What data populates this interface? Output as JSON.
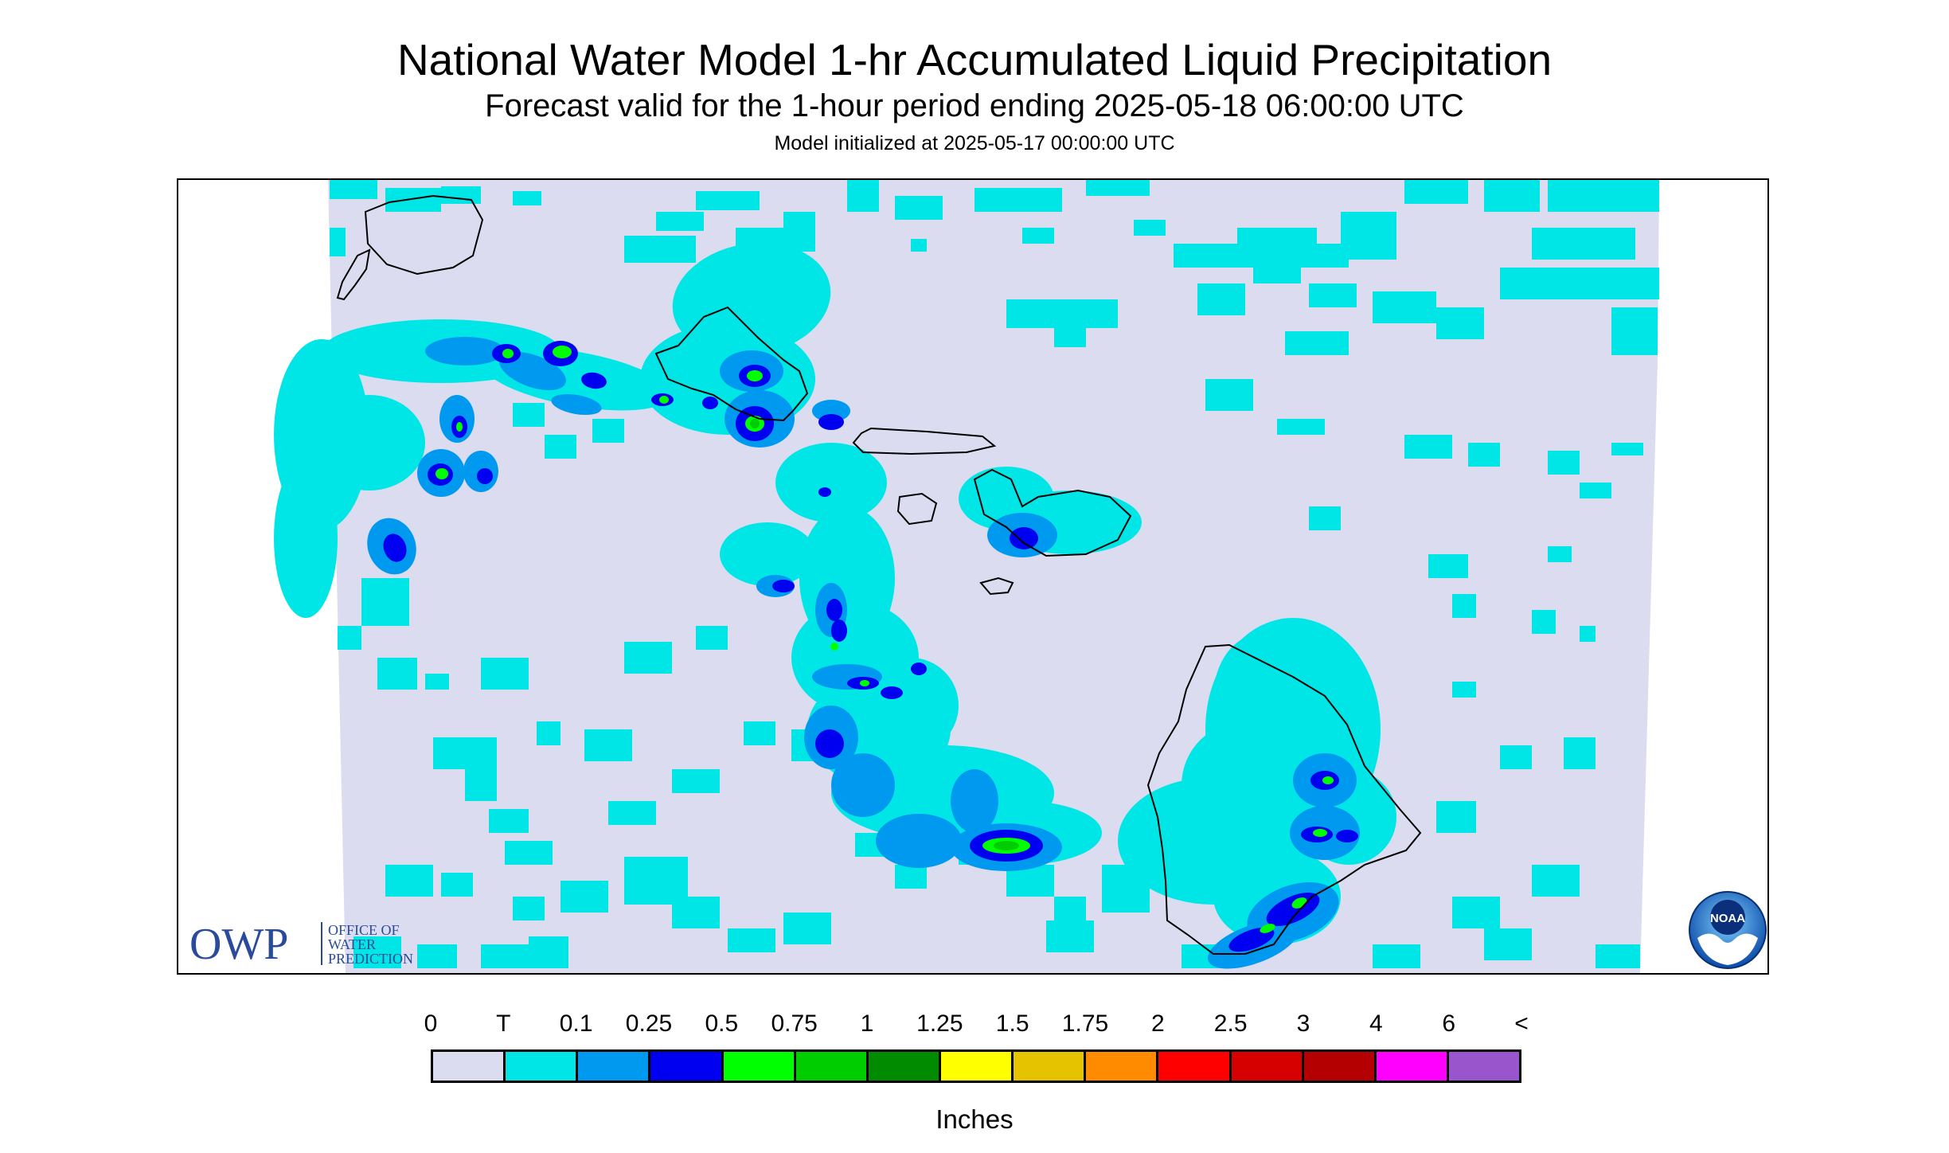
{
  "title": "National Water Model 1-hr Accumulated Liquid Precipitation",
  "subtitle": "Forecast valid for the 1-hour period ending 2025-05-18 06:00:00 UTC",
  "init_text": "Model initialized at 2025-05-17 00:00:00 UTC",
  "owp_logo": {
    "mark": "OWP",
    "line1": "OFFICE OF",
    "line2": "WATER",
    "line3": "PREDICTION"
  },
  "noaa_logo": {
    "mark": "NOAA",
    "icon": "noaa-seagull-globe-icon"
  },
  "legend": {
    "units_label": "Inches",
    "bins": [
      {
        "label": "0",
        "color": "#dcdcf0"
      },
      {
        "label": "T",
        "color": "#00e6e6"
      },
      {
        "label": "0.1",
        "color": "#0099f0"
      },
      {
        "label": "0.25",
        "color": "#0000f0"
      },
      {
        "label": "0.5",
        "color": "#00ff00"
      },
      {
        "label": "0.75",
        "color": "#00cd00"
      },
      {
        "label": "1",
        "color": "#008b00"
      },
      {
        "label": "1.25",
        "color": "#ffff00"
      },
      {
        "label": "1.5",
        "color": "#e6c300"
      },
      {
        "label": "1.75",
        "color": "#ff8c00"
      },
      {
        "label": "2",
        "color": "#ff0000"
      },
      {
        "label": "2.5",
        "color": "#d70000"
      },
      {
        "label": "3",
        "color": "#b40000"
      },
      {
        "label": "4",
        "color": "#ff00ff"
      },
      {
        "label": "6",
        "color": "#9955cc"
      }
    ],
    "end_label": "<"
  },
  "map": {
    "background_color": "#dcdcf0",
    "coastline_color": "#000000",
    "features": [
      "Kauai",
      "Niihau",
      "Oahu",
      "Molokai",
      "Lanai",
      "Maui",
      "Kahoolawe",
      "Hawaii"
    ]
  }
}
